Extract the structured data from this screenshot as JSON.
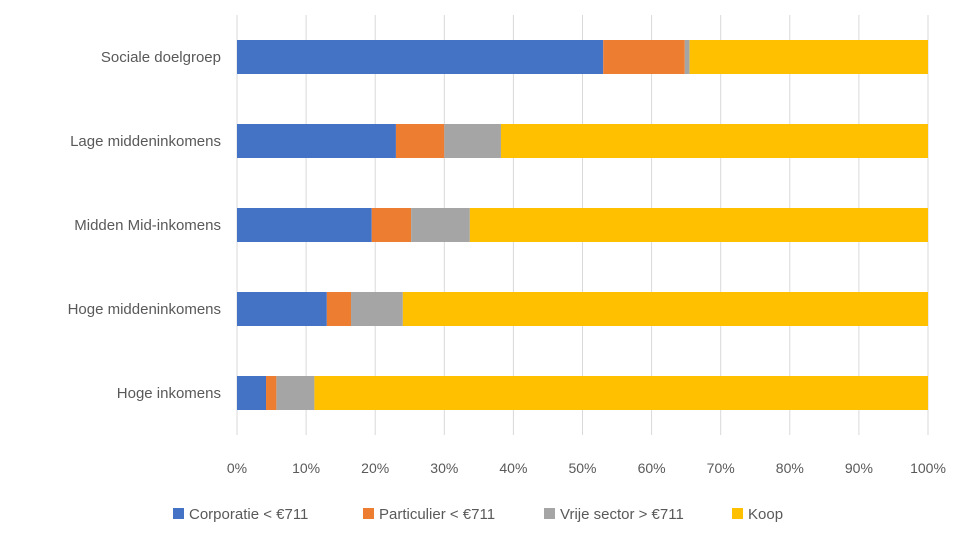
{
  "chart_data": {
    "type": "bar",
    "orientation": "horizontal",
    "stacked": "100%",
    "title": "",
    "xlabel": "",
    "ylabel": "",
    "xlim": [
      0,
      100
    ],
    "x_ticks": [
      "0%",
      "10%",
      "20%",
      "30%",
      "40%",
      "50%",
      "60%",
      "70%",
      "80%",
      "90%",
      "100%"
    ],
    "grid": "vertical",
    "legend_position": "bottom",
    "categories": [
      "Sociale doelgroep",
      "Lage middeninkomens",
      "Midden Mid-inkomens",
      "Hoge middeninkomens",
      "Hoge inkomens"
    ],
    "series": [
      {
        "name": "Corporatie < €711",
        "color": "#4472C4",
        "values": [
          53,
          23,
          19.5,
          13,
          4.2
        ]
      },
      {
        "name": "Particulier < €711",
        "color": "#ED7D31",
        "values": [
          11.8,
          7,
          5.7,
          3.5,
          1.5
        ]
      },
      {
        "name": "Vrije sector > €711",
        "color": "#A5A5A5",
        "values": [
          0.7,
          8.2,
          8.5,
          7.5,
          5.5
        ]
      },
      {
        "name": "Koop",
        "color": "#FFC000",
        "values": [
          34.5,
          61.8,
          66.3,
          76,
          88.8
        ]
      }
    ]
  }
}
